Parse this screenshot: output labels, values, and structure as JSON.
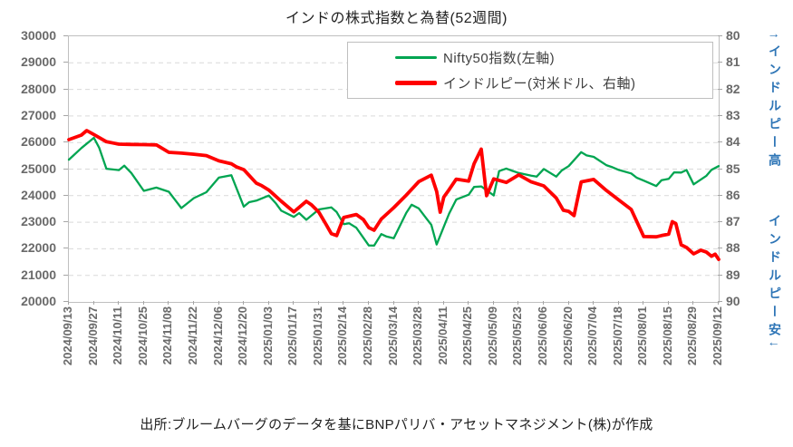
{
  "title": "インドの株式指数と為替(52週間)",
  "footer": "出所:ブルームバーグのデータを基にBNPパリバ・アセットマネジメント(株)が作成",
  "annotations": {
    "right_top": "↑インドルピー高",
    "right_bottom": "インドルピー安↓",
    "color": "#2e75b6"
  },
  "legend": {
    "entries": [
      {
        "label": "Nifty50指数(左軸)",
        "color": "#00a551",
        "thickness": 3
      },
      {
        "label": "インドルピー(対米ドル、右軸)",
        "color": "#ff0000",
        "thickness": 5
      }
    ]
  },
  "colors": {
    "grid": "#d9d9d9",
    "axis": "#a6a6a6",
    "axis_text": "#6a6a6a",
    "nifty_green": "#00a551",
    "rupee_red": "#ff0000",
    "note_blue": "#2e75b6"
  },
  "chart_data": {
    "type": "line",
    "title": "インドの株式指数と為替(52週間)",
    "grid": "horizontal-dashed",
    "legend_position": "top-right-inside",
    "left_axis": {
      "min": 20000,
      "max": 30000,
      "step": 1000,
      "tick_labels": [
        "30000",
        "29000",
        "28000",
        "27000",
        "26000",
        "25000",
        "24000",
        "23000",
        "22000",
        "21000",
        "20000"
      ]
    },
    "right_axis": {
      "min": 80,
      "max": 90,
      "step": 1,
      "inverted_meaning": "higher value = weaker rupee",
      "tick_labels": [
        "80",
        "81",
        "82",
        "83",
        "84",
        "85",
        "86",
        "87",
        "88",
        "89",
        "90"
      ]
    },
    "x_axis": {
      "tick_interval_days": 14,
      "tick_labels": [
        "2024/09/13",
        "2024/09/27",
        "2024/10/11",
        "2024/10/25",
        "2024/11/08",
        "2024/11/22",
        "2024/12/06",
        "2024/12/20",
        "2025/01/03",
        "2025/01/17",
        "2025/01/31",
        "2025/02/14",
        "2025/02/28",
        "2025/03/14",
        "2025/03/28",
        "2025/04/11",
        "2025/04/25",
        "2025/05/09",
        "2025/05/23",
        "2025/06/06",
        "2025/06/20",
        "2025/07/04",
        "2025/07/18",
        "2025/08/01",
        "2025/08/15",
        "2025/08/29",
        "2025/09/12"
      ]
    },
    "x_domain_days": [
      0,
      364
    ],
    "series": [
      {
        "id": "nifty50",
        "name": "Nifty50指数(左軸)",
        "axis": "left",
        "color": "#00a551",
        "width": 2.3,
        "points": [
          [
            0,
            25356
          ],
          [
            7,
            25791
          ],
          [
            14,
            26179
          ],
          [
            17,
            25797
          ],
          [
            21,
            25015
          ],
          [
            28,
            24964
          ],
          [
            31,
            25128
          ],
          [
            35,
            24854
          ],
          [
            42,
            24181
          ],
          [
            49,
            24304
          ],
          [
            56,
            24148
          ],
          [
            59,
            23884
          ],
          [
            63,
            23533
          ],
          [
            70,
            23907
          ],
          [
            77,
            24131
          ],
          [
            84,
            24678
          ],
          [
            91,
            24768
          ],
          [
            98,
            23588
          ],
          [
            101,
            23753
          ],
          [
            105,
            23813
          ],
          [
            112,
            24005
          ],
          [
            116,
            23708
          ],
          [
            119,
            23432
          ],
          [
            126,
            23203
          ],
          [
            129,
            23345
          ],
          [
            133,
            23092
          ],
          [
            140,
            23482
          ],
          [
            147,
            23560
          ],
          [
            150,
            23381
          ],
          [
            154,
            22929
          ],
          [
            157,
            22960
          ],
          [
            161,
            22796
          ],
          [
            168,
            22125
          ],
          [
            171,
            22119
          ],
          [
            175,
            22553
          ],
          [
            178,
            22460
          ],
          [
            182,
            22397
          ],
          [
            189,
            23350
          ],
          [
            192,
            23658
          ],
          [
            196,
            23520
          ],
          [
            200,
            23165
          ],
          [
            203,
            22904
          ],
          [
            206,
            22161
          ],
          [
            210,
            22829
          ],
          [
            213,
            23329
          ],
          [
            217,
            23852
          ],
          [
            224,
            24039
          ],
          [
            227,
            24328
          ],
          [
            231,
            24347
          ],
          [
            238,
            24008
          ],
          [
            241,
            24925
          ],
          [
            245,
            25020
          ],
          [
            248,
            24945
          ],
          [
            252,
            24853
          ],
          [
            259,
            24751
          ],
          [
            262,
            24717
          ],
          [
            266,
            25003
          ],
          [
            273,
            24718
          ],
          [
            276,
            24946
          ],
          [
            280,
            25112
          ],
          [
            287,
            25638
          ],
          [
            290,
            25517
          ],
          [
            294,
            25461
          ],
          [
            301,
            25150
          ],
          [
            304,
            25082
          ],
          [
            308,
            24968
          ],
          [
            315,
            24837
          ],
          [
            318,
            24680
          ],
          [
            322,
            24565
          ],
          [
            329,
            24363
          ],
          [
            332,
            24585
          ],
          [
            336,
            24631
          ],
          [
            339,
            24877
          ],
          [
            343,
            24870
          ],
          [
            346,
            24967
          ],
          [
            350,
            24427
          ],
          [
            357,
            24741
          ],
          [
            360,
            24973
          ],
          [
            364,
            25114
          ]
        ]
      },
      {
        "id": "inr",
        "name": "インドルピー(対米ドル、右軸)",
        "axis": "right",
        "color": "#ff0000",
        "width": 3.8,
        "points": [
          [
            0,
            83.89
          ],
          [
            7,
            83.72
          ],
          [
            10,
            83.55
          ],
          [
            14,
            83.7
          ],
          [
            21,
            83.97
          ],
          [
            28,
            84.06
          ],
          [
            35,
            84.07
          ],
          [
            42,
            84.08
          ],
          [
            49,
            84.09
          ],
          [
            56,
            84.37
          ],
          [
            63,
            84.4
          ],
          [
            70,
            84.44
          ],
          [
            77,
            84.49
          ],
          [
            84,
            84.69
          ],
          [
            91,
            84.8
          ],
          [
            94,
            84.92
          ],
          [
            98,
            85.02
          ],
          [
            105,
            85.53
          ],
          [
            108,
            85.62
          ],
          [
            112,
            85.79
          ],
          [
            119,
            86.21
          ],
          [
            126,
            86.61
          ],
          [
            133,
            86.21
          ],
          [
            136,
            86.35
          ],
          [
            140,
            86.62
          ],
          [
            144,
            87.07
          ],
          [
            147,
            87.43
          ],
          [
            150,
            87.5
          ],
          [
            154,
            86.82
          ],
          [
            161,
            86.71
          ],
          [
            165,
            86.9
          ],
          [
            168,
            87.2
          ],
          [
            171,
            87.3
          ],
          [
            175,
            86.88
          ],
          [
            182,
            86.45
          ],
          [
            189,
            85.98
          ],
          [
            196,
            85.47
          ],
          [
            203,
            85.23
          ],
          [
            206,
            85.84
          ],
          [
            208,
            86.62
          ],
          [
            210,
            86.05
          ],
          [
            213,
            85.77
          ],
          [
            217,
            85.38
          ],
          [
            224,
            85.45
          ],
          [
            227,
            84.8
          ],
          [
            231,
            84.25
          ],
          [
            234,
            86.0
          ],
          [
            238,
            85.37
          ],
          [
            245,
            85.5
          ],
          [
            252,
            85.22
          ],
          [
            259,
            85.48
          ],
          [
            266,
            85.63
          ],
          [
            273,
            86.09
          ],
          [
            277,
            86.55
          ],
          [
            280,
            86.59
          ],
          [
            283,
            86.75
          ],
          [
            287,
            85.48
          ],
          [
            294,
            85.39
          ],
          [
            301,
            85.8
          ],
          [
            308,
            86.16
          ],
          [
            315,
            86.52
          ],
          [
            322,
            87.54
          ],
          [
            329,
            87.55
          ],
          [
            332,
            87.5
          ],
          [
            336,
            87.45
          ],
          [
            338,
            86.98
          ],
          [
            340,
            87.05
          ],
          [
            343,
            87.85
          ],
          [
            346,
            87.95
          ],
          [
            350,
            88.19
          ],
          [
            354,
            88.05
          ],
          [
            357,
            88.12
          ],
          [
            360,
            88.28
          ],
          [
            362,
            88.2
          ],
          [
            364,
            88.4
          ]
        ]
      }
    ]
  }
}
